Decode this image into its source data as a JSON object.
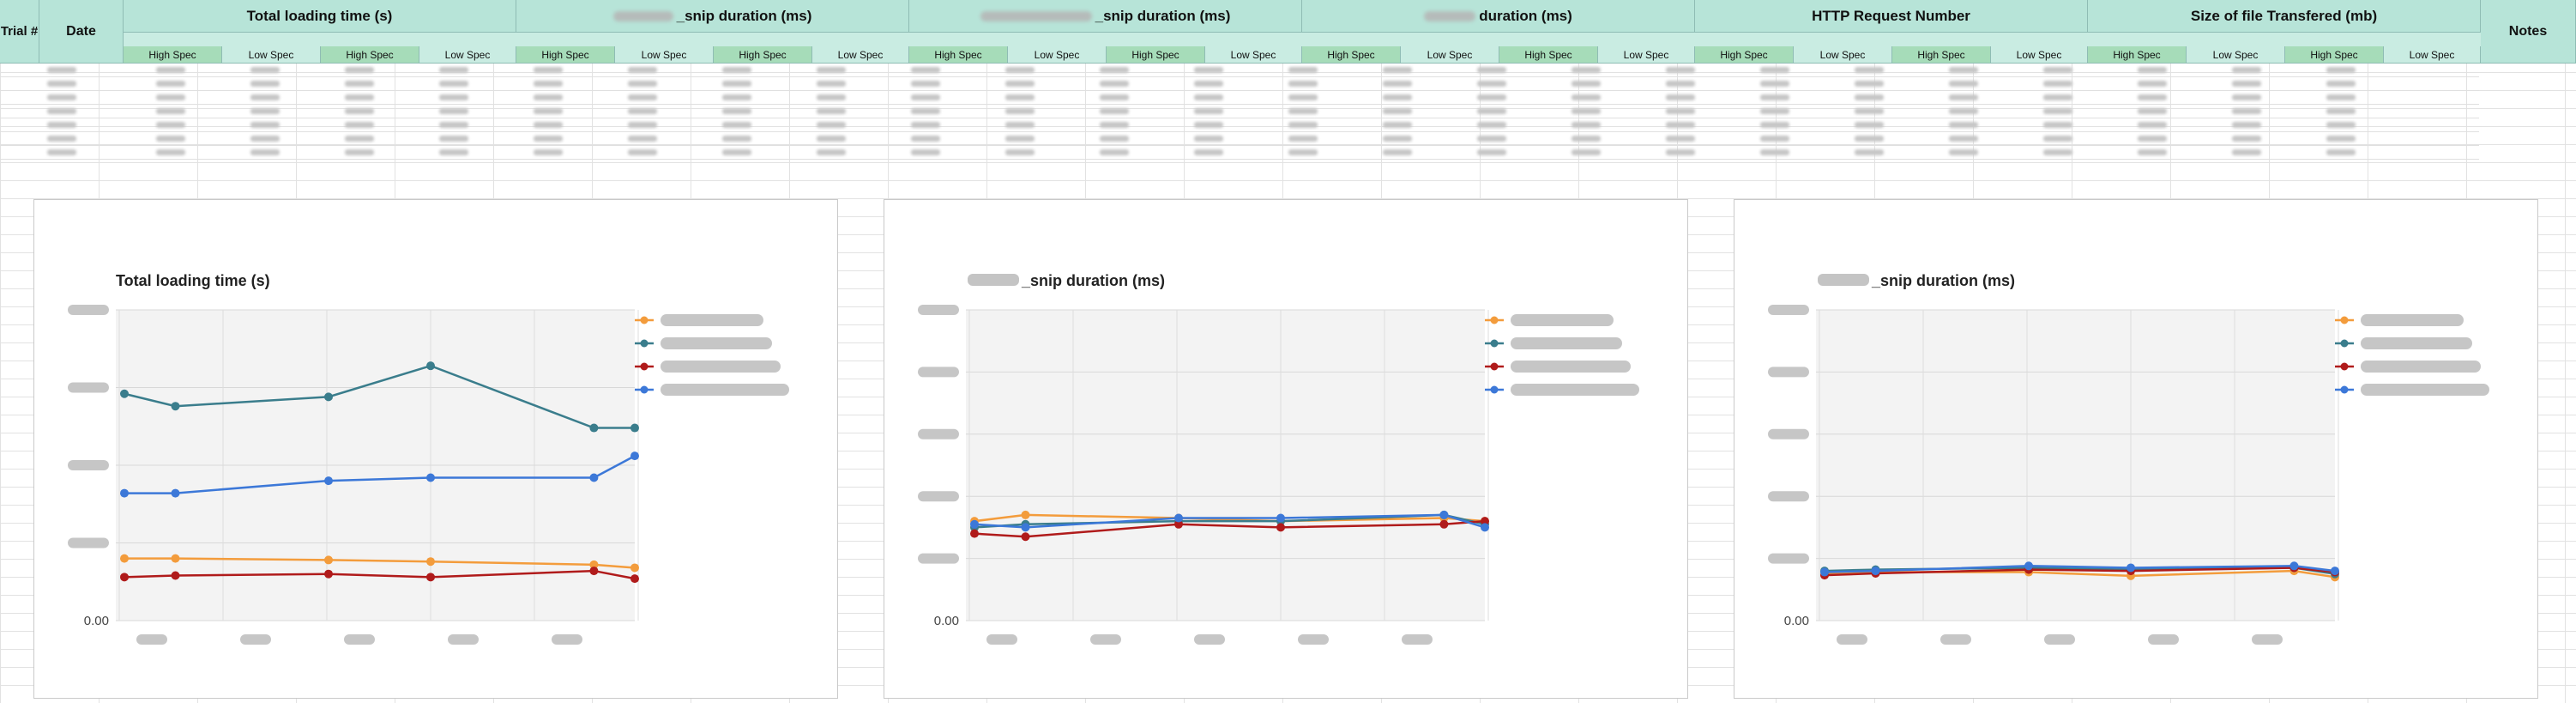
{
  "header": {
    "trial": "Trial #",
    "date": "Date",
    "groups": [
      "Total loading time (s)",
      "_snip duration (ms)",
      "_snip duration (ms)",
      "duration (ms)",
      "HTTP Request Number",
      "Size of file Transfered (mb)"
    ],
    "notes": "Notes",
    "sub_labels": [
      "High Spec",
      "Low Spec",
      "High Spec",
      "Low Spec"
    ]
  },
  "colors": {
    "orange": "#f39c3c",
    "teal": "#3a7d8c",
    "red": "#b01b1b",
    "blue": "#3c78d8"
  },
  "chart_data": [
    {
      "type": "line",
      "title": "Total loading time (s)",
      "yticks": [
        "",
        "",
        "",
        "",
        "0.00"
      ],
      "ylim": [
        0,
        10
      ],
      "x": [
        0,
        0.5,
        2,
        3,
        4.6,
        5
      ],
      "series": [
        {
          "color_key": "orange",
          "values": [
            2.0,
            2.0,
            1.95,
            1.9,
            1.8,
            1.7
          ]
        },
        {
          "color_key": "teal",
          "values": [
            7.3,
            6.9,
            7.2,
            8.2,
            6.2,
            6.2
          ]
        },
        {
          "color_key": "red",
          "values": [
            1.4,
            1.45,
            1.5,
            1.4,
            1.6,
            1.35
          ]
        },
        {
          "color_key": "blue",
          "values": [
            4.1,
            4.1,
            4.5,
            4.6,
            4.6,
            5.3
          ]
        }
      ]
    },
    {
      "type": "line",
      "title": "_snip duration (ms)",
      "yticks": [
        "",
        "",
        "",
        "",
        "",
        "0.00"
      ],
      "ylim": [
        0,
        500
      ],
      "x": [
        0,
        0.5,
        2,
        3,
        4.6,
        5
      ],
      "series": [
        {
          "color_key": "orange",
          "values": [
            160,
            170,
            165,
            160,
            165,
            160
          ]
        },
        {
          "color_key": "teal",
          "values": [
            150,
            155,
            160,
            160,
            170,
            155
          ]
        },
        {
          "color_key": "red",
          "values": [
            140,
            135,
            155,
            150,
            155,
            160
          ]
        },
        {
          "color_key": "blue",
          "values": [
            155,
            150,
            165,
            165,
            170,
            150
          ]
        }
      ]
    },
    {
      "type": "line",
      "title": "_snip duration (ms)",
      "yticks": [
        "",
        "",
        "",
        "",
        "",
        "0.00"
      ],
      "ylim": [
        0,
        500
      ],
      "x": [
        0,
        0.5,
        2,
        3,
        4.6,
        5
      ],
      "series": [
        {
          "color_key": "orange",
          "values": [
            75,
            78,
            78,
            72,
            80,
            70
          ]
        },
        {
          "color_key": "teal",
          "values": [
            80,
            82,
            85,
            82,
            85,
            75
          ]
        },
        {
          "color_key": "red",
          "values": [
            73,
            76,
            82,
            80,
            85,
            78
          ]
        },
        {
          "color_key": "blue",
          "values": [
            78,
            80,
            88,
            85,
            88,
            80
          ]
        }
      ]
    }
  ]
}
